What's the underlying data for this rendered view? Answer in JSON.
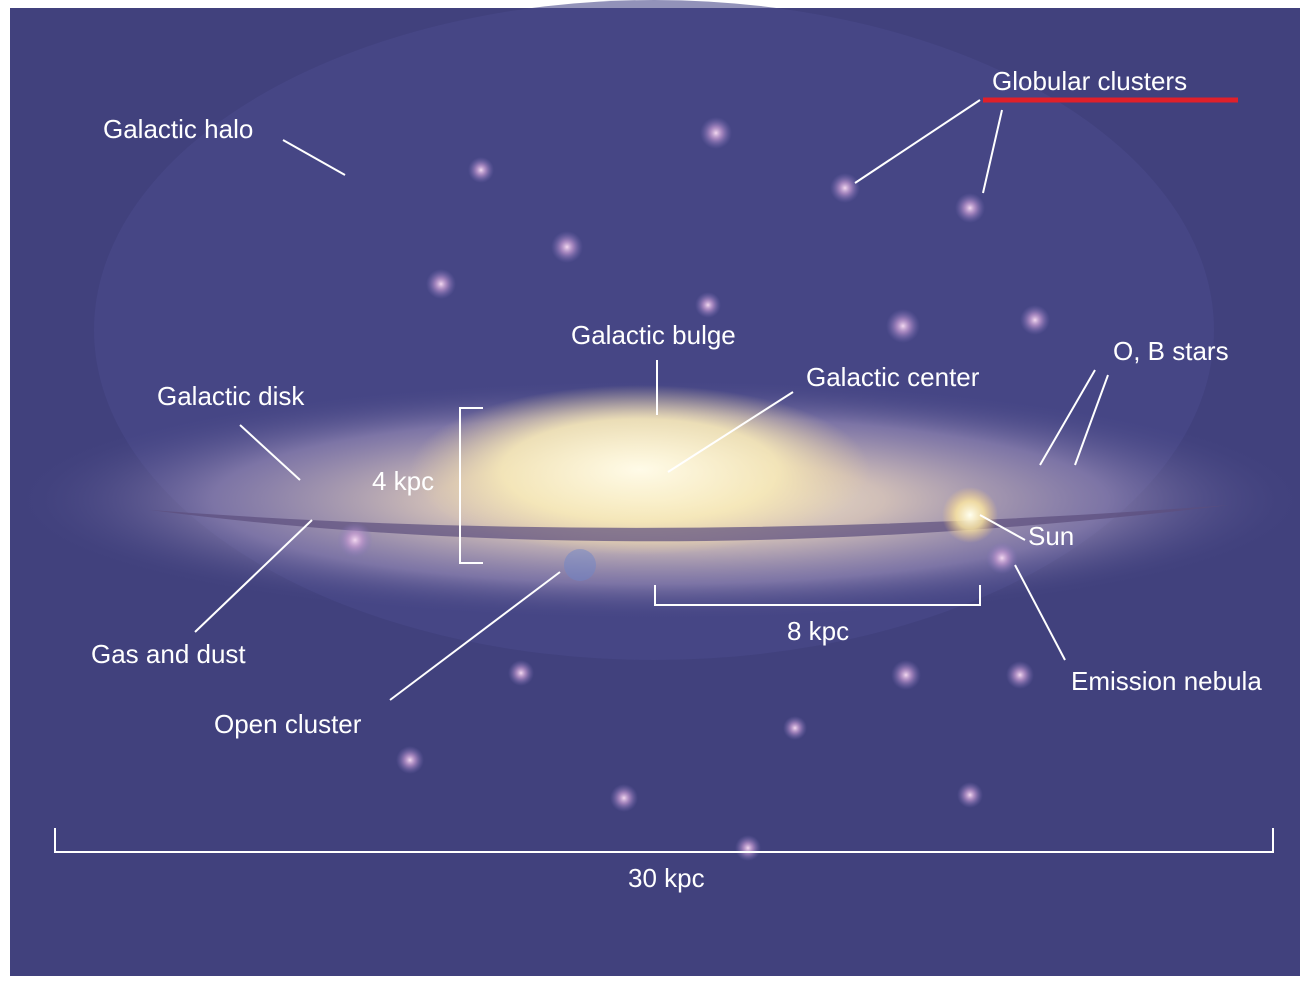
{
  "labels": {
    "galactic_halo": "Galactic halo",
    "globular_clusters": "Globular clusters",
    "galactic_bulge": "Galactic bulge",
    "galactic_center": "Galactic center",
    "ob_stars": "O, B stars",
    "galactic_disk": "Galactic disk",
    "bulge_height": "4 kpc",
    "sun": "Sun",
    "gas_and_dust": "Gas and dust",
    "sun_distance": "8 kpc",
    "emission_nebula": "Emission nebula",
    "open_cluster": "Open cluster",
    "galaxy_diameter": "30 kpc"
  }
}
